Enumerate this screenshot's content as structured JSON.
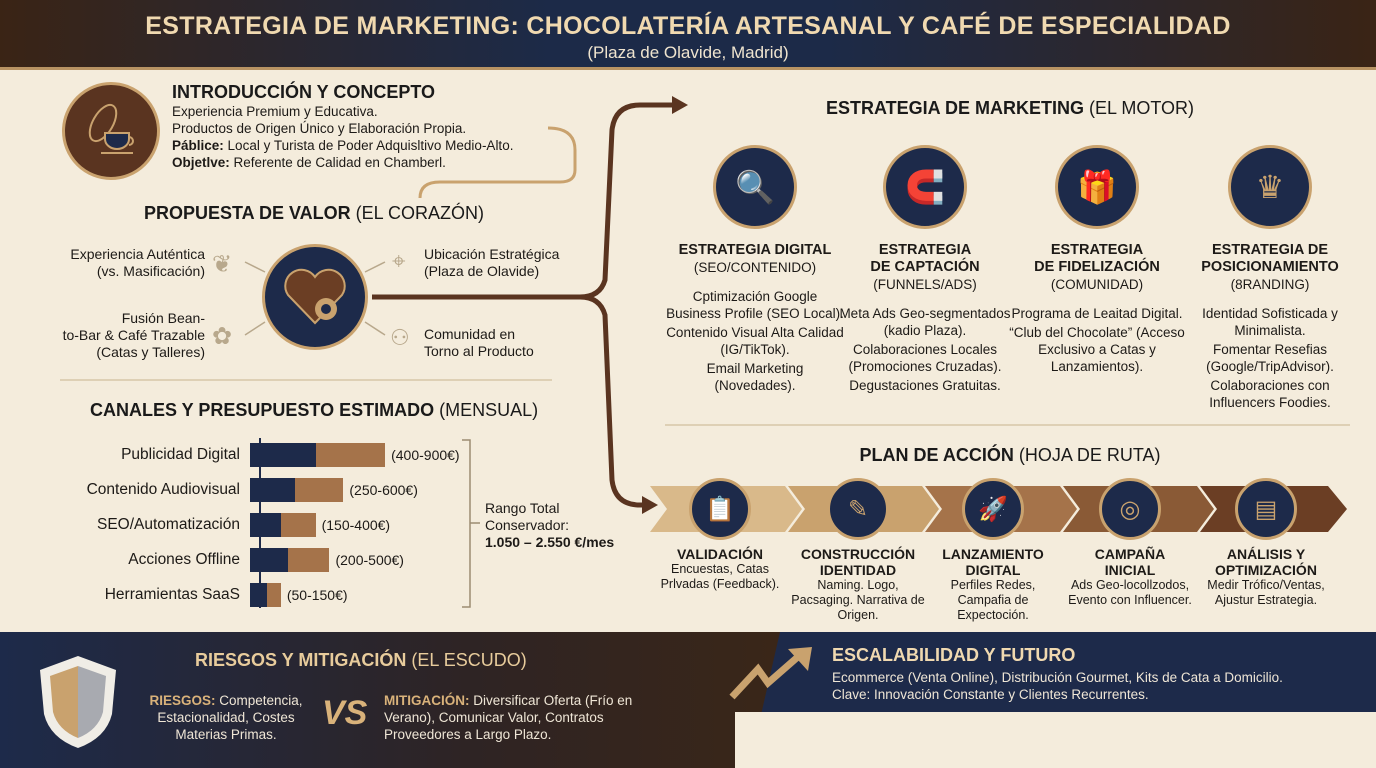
{
  "header": {
    "title": "ESTRATEGIA DE MARKETING: CHOCOLATERÍA ARTESANAL Y CAFÉ DE ESPECIALIDAD",
    "subtitle": "(Plaza de Olavide, Madrid)"
  },
  "intro": {
    "title": "INTRODUCCIÓN Y CONCEPTO",
    "icon": "cacao-coffee-cup-icon",
    "lines": [
      "Experiencia Premium y Educativa.",
      "Productos de Origen Único y Elaboración Propia."
    ],
    "public_label": "Páblice:",
    "public_text": "Local y Turista de Poder Adquisltivo Medio-Alto.",
    "objective_label": "Objetlve:",
    "objective_text": "Referente de Calidad en Chamberl."
  },
  "value": {
    "title": "PROPUESTA DE VALOR",
    "title_paren": "(EL CORAZÓN)",
    "icon": "heart-gear-icon",
    "items": [
      {
        "l1": "Experiencia Auténtica",
        "l2": "(vs. Masificación)",
        "icon": "cacao-pod-icon"
      },
      {
        "l1": "Fusión Bean-",
        "l2": "to-Bar & Café Trazable",
        "l3": "(Catas y Talleres)",
        "icon": "handshake-icon"
      },
      {
        "l1": "Ubicación Estratégica",
        "l2": "(Plaza de Olavide)",
        "icon": "location-pin-icon"
      },
      {
        "l1": "Comunidad en",
        "l2": "Torno al Producto",
        "icon": "community-icon"
      }
    ]
  },
  "channels": {
    "title": "CANALES Y PRESUPUESTO ESTIMADO",
    "title_paren": "(MENSUAL)",
    "total_l1": "Rango Total",
    "total_l2": "Conservador:",
    "total_l3": "1.050 – 2.550 €/mes"
  },
  "chart_data": {
    "type": "bar",
    "orientation": "horizontal",
    "stacked_range": true,
    "categories": [
      "Publicidad Digital",
      "Contenido Audiovisual",
      "SEO/Automatización",
      "Acciones Offline",
      "Herramientas SaaS"
    ],
    "series": [
      {
        "values": [
          400,
          250,
          150,
          200,
          50
        ],
        "color": "#1d2a4a"
      },
      {
        "values": [
          900,
          600,
          400,
          500,
          150
        ],
        "color": "#a5734a"
      }
    ],
    "labels": [
      "(400-900€)",
      "(250-600€)",
      "(150-400€)",
      "(200-500€)",
      "(50-150€)"
    ],
    "unit": "€"
  },
  "marketing": {
    "title": "ESTRATEGIA DE MARKETING",
    "title_paren": "(EL MOTOR)",
    "items": [
      {
        "t1": "ESTRATEGIA DIGITAL",
        "t2": "",
        "sub": "(SEO/CONTENIDO)",
        "icon": "phone-search-icon",
        "desc": [
          "Cptimización Google Business Profile (SEO Local).",
          "Contenido Visual Alta Calidad (IG/TikTok).",
          "Email Marketing (Novedades)."
        ]
      },
      {
        "t1": "ESTRATEGIA",
        "t2": "DE CAPTACIÓN",
        "sub": "(FUNNELS/ADS)",
        "icon": "magnet-megaphone-icon",
        "desc": [
          "Meta Ads Geo-segmentados (kadio Plaza).",
          "Colaboraciones Locales (Promociones Cruzadas).",
          "Degustaciones Gratuitas."
        ]
      },
      {
        "t1": "ESTRATEGIA",
        "t2": "DE FIDELIZACIÓN",
        "sub": "(COMUNIDAD)",
        "icon": "gift-handshake-icon",
        "desc": [
          "Programa de Leaitad Digital.",
          "“Club del Chocolate” (Acceso Exclusivo a Catas y Lanzamientos)."
        ]
      },
      {
        "t1": "ESTRATEGIA DE",
        "t2": "POSICIONAMIENTO",
        "sub": "(8RANDING)",
        "icon": "crown-chat-icon",
        "desc": [
          "Identidad Sofisticada y Minimalista.",
          "Fomentar Resefias (Google/TripAdvisor).",
          "Colaboraciones con Influencers Foodies."
        ]
      }
    ]
  },
  "plan": {
    "title": "PLAN DE ACCIÓN",
    "title_paren": "(HOJA DE RUTA)",
    "steps": [
      {
        "t1": "VALIDACIÓN",
        "t2": "",
        "icon": "clipboard-icon",
        "desc": "Encuestas, Catas Prlvadas (Feedback)."
      },
      {
        "t1": "CONSTRUCCIÓN",
        "t2": "IDENTIDAD",
        "icon": "pencil-ruler-icon",
        "desc": "Naming. Logo, Pacsaging. Narrativa de Origen."
      },
      {
        "t1": "LANZAMIENTO",
        "t2": "DIGITAL",
        "icon": "rocket-icon",
        "desc": "Perfiles Redes, Campafia de Expectoción."
      },
      {
        "t1": "CAMPAÑA",
        "t2": "INICIAL",
        "icon": "target-icon",
        "desc": "Ads Geo-locollzodos, Evento con Influencer."
      },
      {
        "t1": "ANÁLISIS Y",
        "t2": "OPTIMIZACIÓN",
        "icon": "analytics-dashboard-icon",
        "desc": "Medir Trófico/Ventas, Ajustur Estrategia."
      }
    ]
  },
  "risks": {
    "title": "RIESGOS Y MITIGACIÓN",
    "title_paren": "(EL ESCUDO)",
    "icon": "shield-icon",
    "risks_label": "RIESGOS:",
    "risks_text": "Competencia, Estacionalidad, Costes Materias Primas.",
    "vs": "VS",
    "mit_label": "MITIGACIÓN:",
    "mit_text": "Diversificar Oferta (Frío en Verano), Comunicar Valor, Contratos Proveedores a Largo Plazo."
  },
  "future": {
    "title": "ESCALABILIDAD Y FUTURO",
    "icon": "trend-arrow-icon",
    "l1": "Ecommerce (Venta Online), Distribución Gourmet, Kits de Cata a Domicilio.",
    "l2": "Clave: Innovación Constante y Clientes Recurrentes."
  },
  "colors": {
    "navy": "#1d2a4a",
    "brown": "#5a3420",
    "gold": "#c9a26e",
    "cream": "#f4ecdc"
  }
}
